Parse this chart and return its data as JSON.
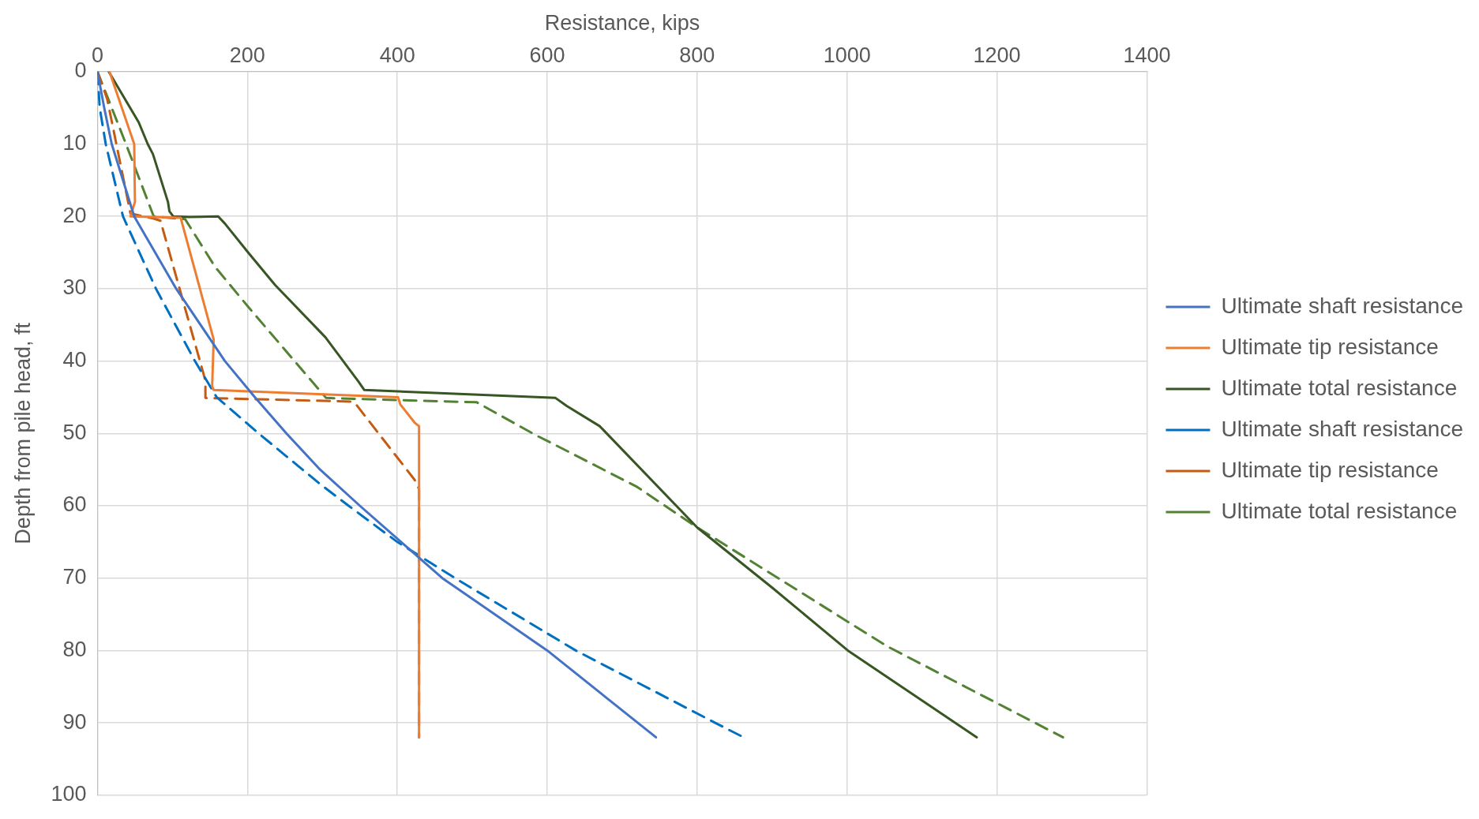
{
  "chart_data": {
    "type": "line",
    "xlabel": "Resistance, kips",
    "ylabel": "Depth from pile head, ft",
    "xlim": [
      0,
      1400
    ],
    "xticks": [
      0,
      200,
      400,
      600,
      800,
      1000,
      1200,
      1400
    ],
    "ylim": [
      100,
      0
    ],
    "yticks": [
      0,
      10,
      20,
      30,
      40,
      50,
      60,
      70,
      80,
      90,
      100
    ],
    "grid": true,
    "legend": "right",
    "marker": "none",
    "series": [
      {
        "name": "Ultimate shaft resistance",
        "color": "#4472c4",
        "line_style": "solid",
        "x": [
          0,
          9,
          19,
          49,
          105,
          170,
          210,
          252,
          297,
          350,
          405,
          460,
          600,
          745
        ],
        "values": [
          0,
          5,
          10,
          20,
          30,
          40,
          45,
          50,
          55,
          60,
          65,
          70,
          80,
          92
        ]
      },
      {
        "name": "Ultimate tip resistance",
        "color": "#ed7d31",
        "line_style": "solid",
        "x": [
          16,
          49,
          50,
          44,
          111,
          155,
          153,
          155,
          401,
          404,
          423,
          429,
          429
        ],
        "values": [
          0,
          10,
          18,
          20,
          20.2,
          37,
          43.5,
          44,
          45,
          46,
          48.5,
          49,
          92
        ]
      },
      {
        "name": "Ultimate total resistance",
        "color": "#375623",
        "line_style": "solid",
        "x": [
          15,
          55,
          67,
          74,
          94,
          96,
          101,
          122,
          161,
          170,
          201,
          237,
          304,
          348,
          356,
          611,
          626,
          670,
          800,
          901,
          1001,
          1173
        ],
        "values": [
          0,
          7,
          10,
          11.4,
          18,
          19.3,
          20,
          20.1,
          20,
          21,
          25,
          29.5,
          36.7,
          42.8,
          44,
          45.1,
          46.2,
          49,
          63,
          71.4,
          80,
          92
        ]
      },
      {
        "name": "Ultimate shaft resistance",
        "color": "#0070c0",
        "line_style": "dashed",
        "x": [
          0,
          3,
          11,
          34,
          78,
          130,
          159,
          215,
          297,
          335,
          400,
          477,
          638,
          824,
          862
        ],
        "values": [
          0,
          5,
          10,
          20,
          30,
          40,
          45,
          50,
          57,
          60,
          65,
          70,
          80,
          90,
          92
        ]
      },
      {
        "name": "Ultimate tip resistance",
        "color": "#c55a11",
        "line_style": "dashed",
        "x": [
          0,
          13,
          44,
          75,
          84,
          144,
          144,
          339,
          345,
          423,
          429,
          429
        ],
        "values": [
          0,
          3.8,
          19.6,
          20.3,
          20.6,
          42.7,
          45.1,
          45.6,
          46,
          56.4,
          57.7,
          92
        ]
      },
      {
        "name": "Ultimate total resistance",
        "color": "#548235",
        "line_style": "dashed",
        "x": [
          0,
          38,
          75,
          117,
          157,
          201,
          305,
          506,
          584,
          607,
          720,
          797,
          1053,
          1288
        ],
        "values": [
          0,
          10,
          20,
          20.4,
          27,
          32.5,
          45.1,
          45.7,
          50.2,
          51.4,
          57.4,
          62.8,
          79.4,
          92
        ]
      }
    ]
  }
}
